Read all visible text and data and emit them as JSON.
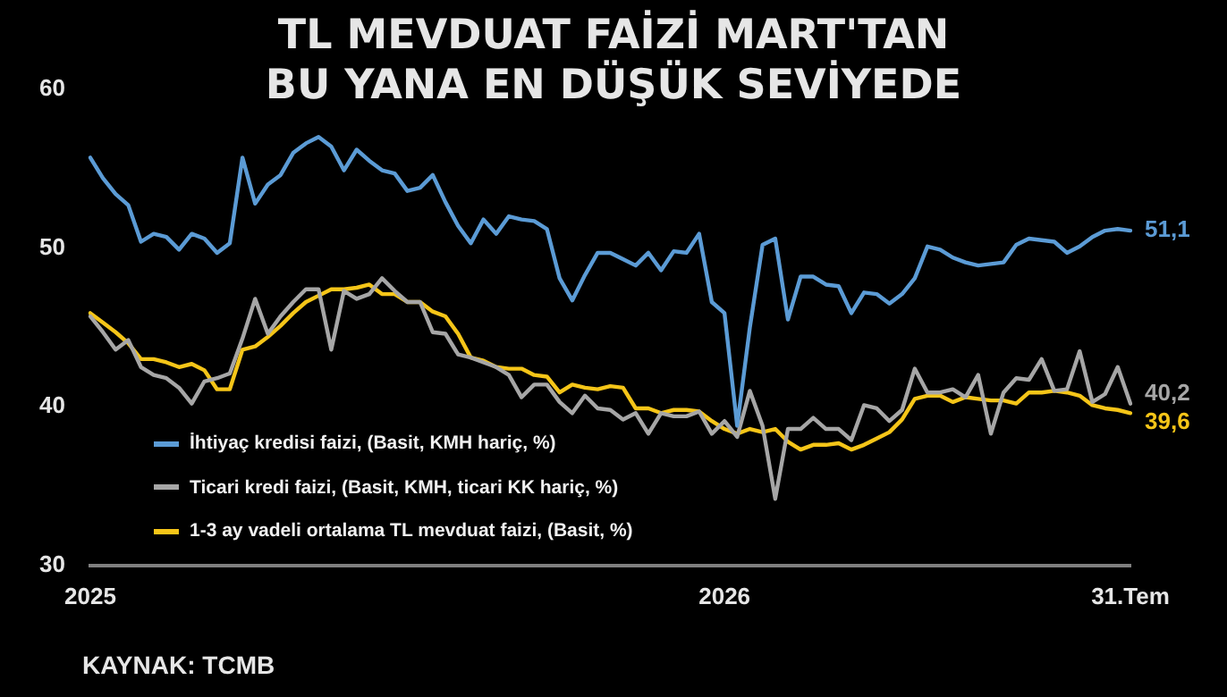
{
  "chart_data": {
    "type": "line",
    "title": "TL MEVDUAT FAİZİ MART'TAN\nBU YANA EN DÜŞÜK SEVİYEDE",
    "categories": [
      "2025",
      null,
      null,
      null,
      null,
      null,
      null,
      null,
      null,
      null,
      null,
      null,
      null,
      null,
      null,
      null,
      null,
      null,
      null,
      null,
      null,
      null,
      null,
      null,
      null,
      null,
      null,
      null,
      null,
      null,
      null,
      null,
      null,
      null,
      null,
      null,
      null,
      null,
      null,
      null,
      null,
      null,
      null,
      null,
      null,
      null,
      null,
      null,
      null,
      null,
      "2026",
      null,
      null,
      null,
      null,
      null,
      null,
      null,
      null,
      null,
      null,
      null,
      null,
      null,
      null,
      null,
      null,
      null,
      null,
      null,
      null,
      null,
      null,
      null,
      null,
      null,
      null,
      null,
      null,
      null,
      null,
      null,
      "31.Tem"
    ],
    "series": [
      {
        "name": "İhtiyaç kredisi faizi, (Basit, KMH hariç, %)",
        "color": "#5b9bd5",
        "values": [
          55.7,
          54.4,
          53.4,
          52.7,
          50.4,
          50.9,
          50.7,
          49.9,
          50.9,
          50.6,
          49.7,
          50.3,
          55.7,
          52.8,
          54.0,
          54.6,
          56.0,
          56.6,
          57.0,
          56.4,
          54.9,
          56.2,
          55.5,
          54.9,
          54.7,
          53.6,
          53.8,
          54.6,
          52.9,
          51.4,
          50.3,
          51.8,
          50.9,
          52.0,
          51.8,
          51.7,
          51.2,
          48.1,
          46.7,
          48.3,
          49.7,
          49.7,
          49.3,
          48.9,
          49.7,
          48.6,
          49.8,
          49.7,
          50.9,
          46.6,
          45.9,
          38.8,
          45.0,
          50.2,
          50.6,
          45.5,
          48.2,
          48.2,
          47.7,
          47.6,
          45.9,
          47.2,
          47.1,
          46.5,
          47.1,
          48.1,
          50.1,
          49.9,
          49.4,
          49.1,
          48.9,
          49.0,
          49.1,
          50.2,
          50.6,
          50.5,
          50.4,
          49.7,
          50.1,
          50.7,
          51.1,
          51.2,
          51.1
        ],
        "value_labels": [
          null,
          null,
          null,
          null,
          null,
          null,
          null,
          null,
          null,
          null,
          null,
          null,
          null,
          null,
          null,
          null,
          null,
          null,
          null,
          null,
          null,
          null,
          null,
          null,
          null,
          null,
          null,
          null,
          null,
          null,
          null,
          null,
          null,
          null,
          null,
          null,
          null,
          null,
          null,
          null,
          null,
          null,
          null,
          null,
          null,
          null,
          null,
          null,
          null,
          null,
          null,
          null,
          null,
          null,
          null,
          null,
          null,
          null,
          null,
          null,
          null,
          null,
          null,
          null,
          null,
          null,
          null,
          null,
          null,
          null,
          null,
          null,
          null,
          null,
          null,
          null,
          null,
          null,
          null,
          null,
          null,
          null,
          "51,1"
        ]
      },
      {
        "name": "Ticari kredi faizi, (Basit, KMH, ticari KK hariç, %)",
        "color": "#a6a6a6",
        "values": [
          45.7,
          44.7,
          43.6,
          44.2,
          42.5,
          42.0,
          41.8,
          41.2,
          40.2,
          41.6,
          41.8,
          42.1,
          44.3,
          46.8,
          44.6,
          45.7,
          46.6,
          47.4,
          47.4,
          43.6,
          47.3,
          46.8,
          47.1,
          48.1,
          47.3,
          46.6,
          46.6,
          44.7,
          44.6,
          43.3,
          43.1,
          42.8,
          42.5,
          42.0,
          40.6,
          41.4,
          41.4,
          40.3,
          39.6,
          40.7,
          39.9,
          39.8,
          39.2,
          39.6,
          38.3,
          39.6,
          39.4,
          39.4,
          39.7,
          38.3,
          39.1,
          38.1,
          41.0,
          38.8,
          34.2,
          38.6,
          38.6,
          39.3,
          38.6,
          38.6,
          37.9,
          40.1,
          39.9,
          39.1,
          39.8,
          42.4,
          40.9,
          40.9,
          41.1,
          40.6,
          42.0,
          38.3,
          40.9,
          41.8,
          41.7,
          43.0,
          41.0,
          41.1,
          43.5,
          40.3,
          40.8,
          42.5,
          40.2
        ],
        "value_labels": [
          null,
          null,
          null,
          null,
          null,
          null,
          null,
          null,
          null,
          null,
          null,
          null,
          null,
          null,
          null,
          null,
          null,
          null,
          null,
          null,
          null,
          null,
          null,
          null,
          null,
          null,
          null,
          null,
          null,
          null,
          null,
          null,
          null,
          null,
          null,
          null,
          null,
          null,
          null,
          null,
          null,
          null,
          null,
          null,
          null,
          null,
          null,
          null,
          null,
          null,
          null,
          null,
          null,
          null,
          null,
          null,
          null,
          null,
          null,
          null,
          null,
          null,
          null,
          null,
          null,
          null,
          null,
          null,
          null,
          null,
          null,
          null,
          null,
          null,
          null,
          null,
          null,
          null,
          null,
          null,
          null,
          null,
          "40,2"
        ]
      },
      {
        "name": "1-3 ay vadeli ortalama TL mevduat faizi, (Basit, %)",
        "color": "#f5c518",
        "values": [
          45.9,
          45.3,
          44.7,
          44.0,
          43.0,
          43.0,
          42.8,
          42.5,
          42.7,
          42.3,
          41.1,
          41.1,
          43.6,
          43.8,
          44.4,
          45.1,
          45.9,
          46.6,
          47.0,
          47.4,
          47.4,
          47.5,
          47.7,
          47.1,
          47.1,
          46.6,
          46.6,
          46.0,
          45.7,
          44.6,
          43.1,
          42.9,
          42.5,
          42.4,
          42.4,
          42.0,
          41.9,
          40.9,
          41.4,
          41.2,
          41.1,
          41.3,
          41.2,
          39.9,
          39.9,
          39.6,
          39.8,
          39.8,
          39.7,
          39.1,
          38.6,
          38.3,
          38.6,
          38.4,
          38.6,
          37.8,
          37.3,
          37.6,
          37.6,
          37.7,
          37.3,
          37.6,
          38.0,
          38.4,
          39.2,
          40.5,
          40.7,
          40.7,
          40.3,
          40.6,
          40.5,
          40.4,
          40.4,
          40.2,
          40.9,
          40.9,
          41.0,
          40.9,
          40.7,
          40.1,
          39.9,
          39.8,
          39.6
        ],
        "value_labels": [
          null,
          null,
          null,
          null,
          null,
          null,
          null,
          null,
          null,
          null,
          null,
          null,
          null,
          null,
          null,
          null,
          null,
          null,
          null,
          null,
          null,
          null,
          null,
          null,
          null,
          null,
          null,
          null,
          null,
          null,
          null,
          null,
          null,
          null,
          null,
          null,
          null,
          null,
          null,
          null,
          null,
          null,
          null,
          null,
          null,
          null,
          null,
          null,
          null,
          null,
          null,
          null,
          null,
          null,
          null,
          null,
          null,
          null,
          null,
          null,
          null,
          null,
          null,
          null,
          null,
          null,
          null,
          null,
          null,
          null,
          null,
          null,
          null,
          null,
          null,
          null,
          null,
          null,
          null,
          null,
          null,
          null,
          "39,6"
        ]
      }
    ],
    "ylim": [
      30,
      60
    ],
    "yticks": [
      30,
      40,
      50,
      60
    ],
    "legend": "bottom left",
    "marker": "none",
    "line_style": "solid",
    "annotations": [
      "KAYNAK: TCMB"
    ]
  }
}
